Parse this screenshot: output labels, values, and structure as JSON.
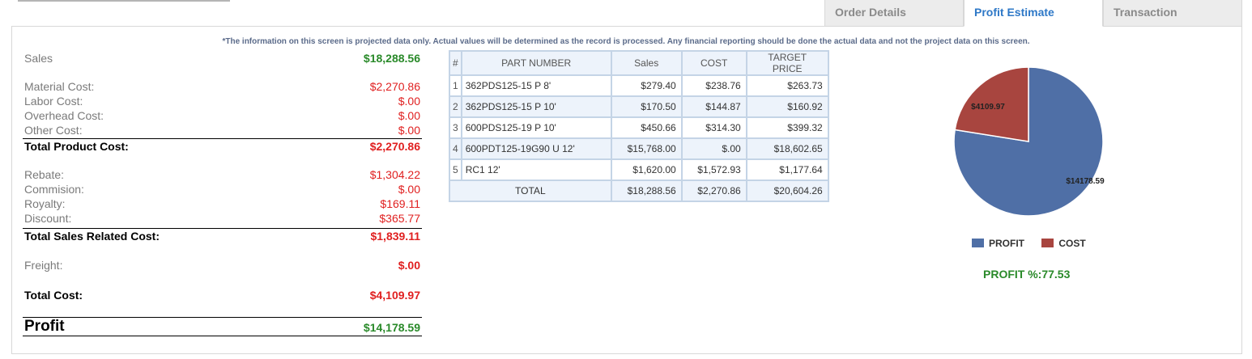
{
  "tabs": [
    {
      "label": "Order Details",
      "active": false
    },
    {
      "label": "Profit Estimate",
      "active": true
    },
    {
      "label": "Transaction",
      "active": false
    }
  ],
  "notice": "*The information on this screen is projected data only. Actual values will be determined as the record is processed. Any financial reporting should be done the actual data and not the project data on this screen.",
  "summary": {
    "sales": {
      "label": "Sales",
      "value": "$18,288.56"
    },
    "material": {
      "label": "Material Cost:",
      "value": "$2,270.86"
    },
    "labor": {
      "label": "Labor Cost:",
      "value": "$.00"
    },
    "overhead": {
      "label": "Overhead Cost:",
      "value": "$.00"
    },
    "other": {
      "label": "Other Cost:",
      "value": "$.00"
    },
    "total_product": {
      "label": "Total Product Cost:",
      "value": "$2,270.86"
    },
    "rebate": {
      "label": "Rebate:",
      "value": "$1,304.22"
    },
    "commision": {
      "label": "Commision:",
      "value": "$.00"
    },
    "royalty": {
      "label": "Royalty:",
      "value": "$169.11"
    },
    "discount": {
      "label": "Discount:",
      "value": "$365.77"
    },
    "total_sales_related": {
      "label": "Total Sales Related Cost:",
      "value": "$1,839.11"
    },
    "freight": {
      "label": "Freight:",
      "value": "$.00"
    },
    "total_cost": {
      "label": "Total Cost:",
      "value": "$4,109.97"
    },
    "profit": {
      "label": "Profit",
      "value": "$14,178.59"
    }
  },
  "parts_table": {
    "headers": [
      "#",
      "PART NUMBER",
      "Sales",
      "COST",
      "TARGET PRICE"
    ],
    "rows": [
      {
        "num": "1",
        "part": "362PDS125-15 P 8'",
        "sales": "$279.40",
        "cost": "$238.76",
        "target": "$263.73"
      },
      {
        "num": "2",
        "part": "362PDS125-15 P 10'",
        "sales": "$170.50",
        "cost": "$144.87",
        "target": "$160.92"
      },
      {
        "num": "3",
        "part": "600PDS125-19 P 10'",
        "sales": "$450.66",
        "cost": "$314.30",
        "target": "$399.32"
      },
      {
        "num": "4",
        "part": "600PDT125-19G90 U 12'",
        "sales": "$15,768.00",
        "cost": "$.00",
        "target": "$18,602.65"
      },
      {
        "num": "5",
        "part": "RC1 12'",
        "sales": "$1,620.00",
        "cost": "$1,572.93",
        "target": "$1,177.64"
      }
    ],
    "total": {
      "label": "TOTAL",
      "sales": "$18,288.56",
      "cost": "$2,270.86",
      "target": "$20,604.26"
    }
  },
  "chart_data": {
    "type": "pie",
    "slices": [
      {
        "name": "PROFIT",
        "value": 14178.59,
        "label": "$14178.59",
        "color": "#4f6fa6"
      },
      {
        "name": "COST",
        "value": 4109.97,
        "label": "$4109.97",
        "color": "#a8453f"
      }
    ],
    "legend": "bottom"
  },
  "profit_pct": "PROFIT %:77.53"
}
